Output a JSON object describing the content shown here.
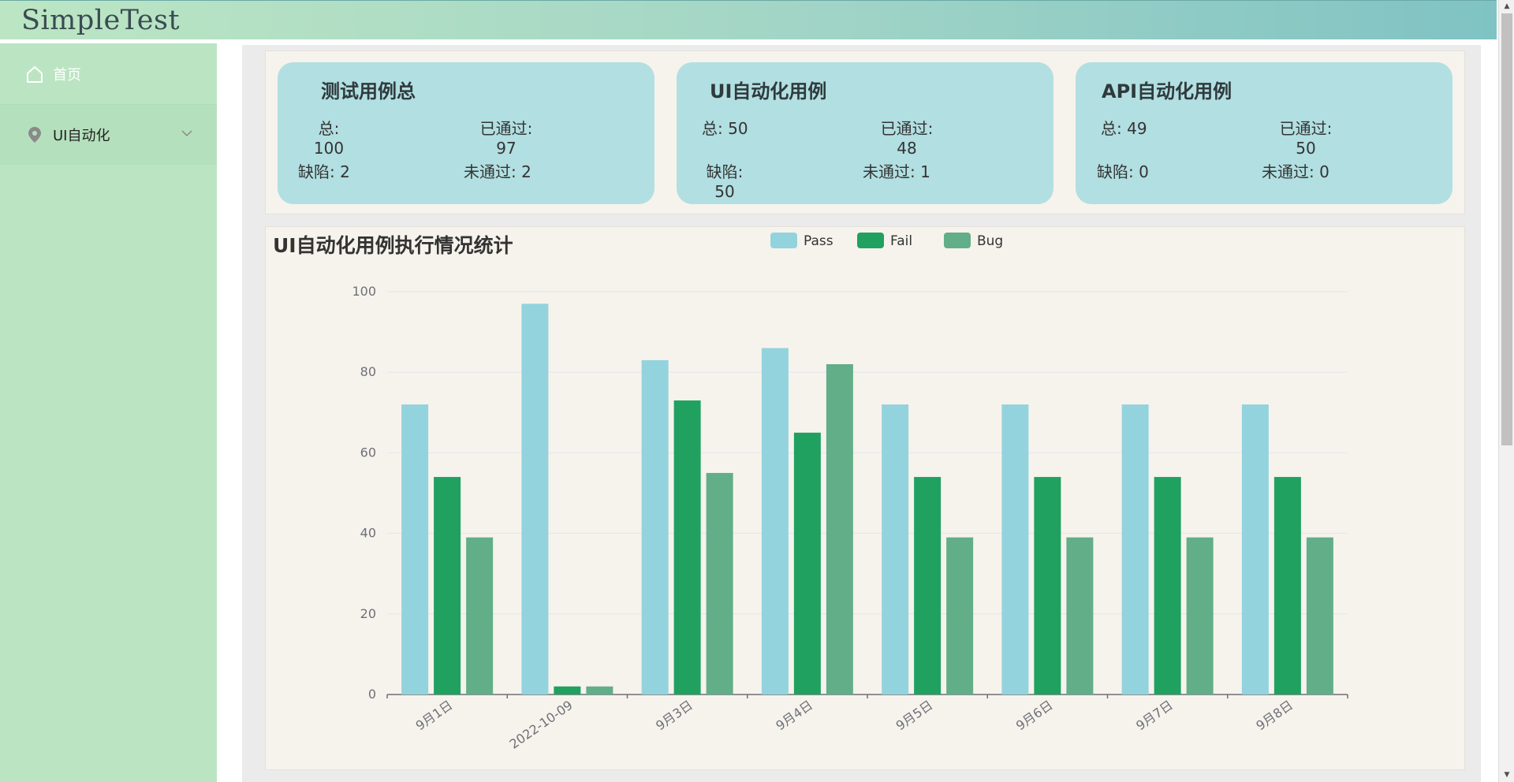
{
  "app": {
    "title": "SimpleTest"
  },
  "sidebar": {
    "items": [
      {
        "label": "首页",
        "icon": "home-icon"
      },
      {
        "label": "UI自动化",
        "icon": "location-pin-icon",
        "expand_icon": "chevron-down-icon"
      }
    ]
  },
  "cards": [
    {
      "title": "测试用例总",
      "total_label": "总:",
      "total_value": "100",
      "passed_label": "已通过:",
      "passed_value": "97",
      "bug_label": "缺陷:",
      "bug_value": "2",
      "failed_label": "未通过:",
      "failed_value": "2"
    },
    {
      "title": "UI自动化用例",
      "total_label": "总:",
      "total_value": "50",
      "passed_label": "已通过:",
      "passed_value": "48",
      "bug_label": "缺陷:",
      "bug_value": "50",
      "failed_label": "未通过:",
      "failed_value": "1"
    },
    {
      "title": "API自动化用例",
      "total_label": "总:",
      "total_value": "49",
      "passed_label": "已通过:",
      "passed_value": "50",
      "bug_label": "缺陷:",
      "bug_value": "0",
      "failed_label": "未通过:",
      "failed_value": "0"
    }
  ],
  "colors": {
    "pass": "#93d3dd",
    "fail": "#20a160",
    "bug": "#62ae88",
    "axis": "#6e7079",
    "grid": "#e0e6f1"
  },
  "chart_data": {
    "type": "bar",
    "title": "UI自动化用例执行情况统计",
    "categories": [
      "9月1日",
      "2022-10-09",
      "9月3日",
      "9月4日",
      "9月5日",
      "9月6日",
      "9月7日",
      "9月8日"
    ],
    "series": [
      {
        "name": "Pass",
        "values": [
          72,
          97,
          83,
          86,
          72,
          72,
          72,
          72
        ]
      },
      {
        "name": "Fail",
        "values": [
          54,
          2,
          73,
          65,
          54,
          54,
          54,
          54
        ]
      },
      {
        "name": "Bug",
        "values": [
          39,
          2,
          55,
          82,
          39,
          39,
          39,
          39
        ]
      }
    ],
    "ylim": [
      0,
      100
    ],
    "yticks": [
      0,
      20,
      40,
      60,
      80,
      100
    ],
    "grid": true,
    "legend": "top-center"
  }
}
